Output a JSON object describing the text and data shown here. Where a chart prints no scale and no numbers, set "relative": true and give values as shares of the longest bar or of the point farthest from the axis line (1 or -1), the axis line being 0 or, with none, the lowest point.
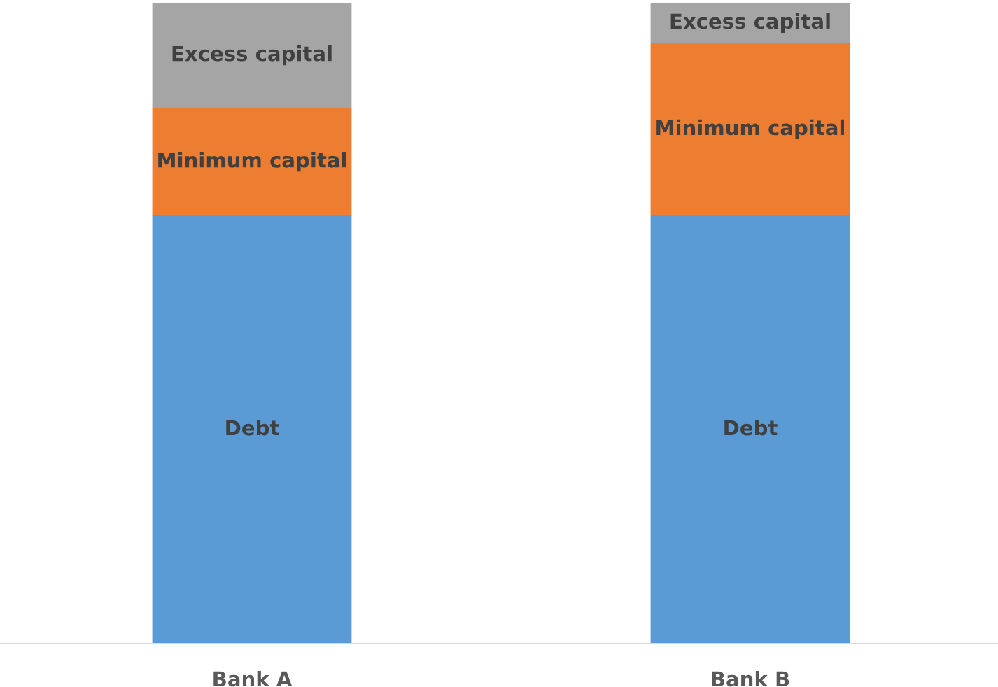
{
  "chart_data": {
    "type": "bar",
    "stacked": true,
    "relative": true,
    "categories": [
      "Bank A",
      "Bank B"
    ],
    "series": [
      {
        "name": "Debt",
        "color": "#5b9bd5",
        "values": [
          0.668,
          0.668
        ]
      },
      {
        "name": "Minimum capital",
        "color": "#ed7d31",
        "values": [
          0.168,
          0.269
        ]
      },
      {
        "name": "Excess capital",
        "color": "#a5a5a5",
        "values": [
          0.164,
          0.063
        ]
      }
    ],
    "legend": false,
    "grid": false
  }
}
